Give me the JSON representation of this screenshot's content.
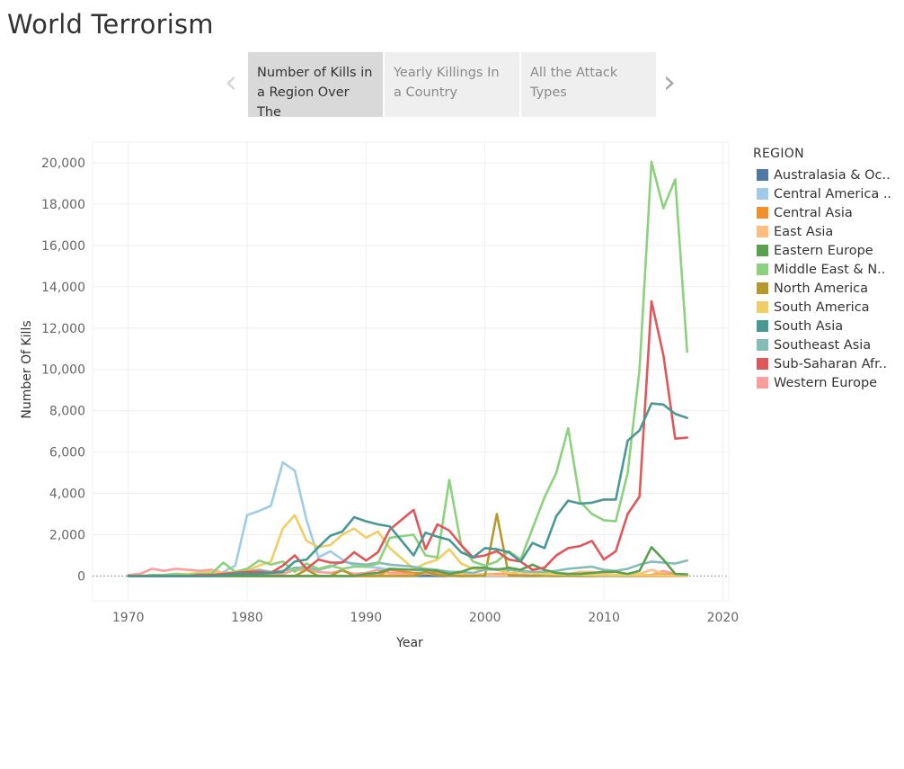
{
  "page": {
    "title": "World Terrorism"
  },
  "story": {
    "prev_icon": "chevron-left-icon",
    "next_icon": "chevron-right-icon",
    "prev_glyph": "‹",
    "next_glyph": "›",
    "points": [
      {
        "label": "Number of Kills in a Region Over The",
        "active": true
      },
      {
        "label": "Yearly Killings In a Country",
        "active": false
      },
      {
        "label": "All the Attack Types",
        "active": false
      }
    ]
  },
  "chart_data": {
    "type": "line",
    "title": "",
    "xlabel": "Year",
    "ylabel": "Number Of Kills",
    "xlim": [
      1967,
      2020.5
    ],
    "ylim": [
      -1200,
      21000
    ],
    "xticks": [
      1970,
      1980,
      1990,
      2000,
      2010,
      2020
    ],
    "yticks": [
      0,
      2000,
      4000,
      6000,
      8000,
      10000,
      12000,
      14000,
      16000,
      18000,
      20000
    ],
    "xtick_labels": [
      "1970",
      "1980",
      "1990",
      "2000",
      "2010",
      "2020"
    ],
    "ytick_labels": [
      "0",
      "2,000",
      "4,000",
      "6,000",
      "8,000",
      "10,000",
      "12,000",
      "14,000",
      "16,000",
      "18,000",
      "20,000"
    ],
    "grid": true,
    "legend": {
      "title": "REGION",
      "position": "right",
      "entries": [
        "Australasia & Oc..",
        "Central America ..",
        "Central Asia",
        "East Asia",
        "Eastern Europe",
        "Middle East & N..",
        "North America",
        "South America",
        "South Asia",
        "Southeast Asia",
        "Sub-Saharan Afr..",
        "Western Europe"
      ]
    },
    "years": [
      1970,
      1971,
      1972,
      1973,
      1974,
      1975,
      1976,
      1977,
      1978,
      1979,
      1980,
      1981,
      1982,
      1983,
      1984,
      1985,
      1986,
      1987,
      1988,
      1989,
      1990,
      1991,
      1992,
      1994,
      1995,
      1996,
      1997,
      1998,
      1999,
      2000,
      2001,
      2002,
      2003,
      2004,
      2005,
      2006,
      2007,
      2008,
      2009,
      2010,
      2011,
      2012,
      2013,
      2014,
      2015,
      2016,
      2017
    ],
    "series": [
      {
        "name": "Australasia & Oceania",
        "color": "#4e79a7",
        "values": [
          0,
          0,
          0,
          0,
          0,
          0,
          0,
          0,
          0,
          0,
          0,
          0,
          0,
          0,
          0,
          10,
          0,
          5,
          0,
          10,
          20,
          10,
          10,
          5,
          10,
          0,
          5,
          0,
          10,
          0,
          0,
          0,
          0,
          0,
          5,
          0,
          5,
          0,
          0,
          0,
          5,
          0,
          5,
          5,
          5,
          5,
          5
        ]
      },
      {
        "name": "Central America & Caribbean",
        "color": "#a0cbe8",
        "values": [
          0,
          0,
          0,
          0,
          10,
          0,
          0,
          0,
          200,
          500,
          2950,
          3150,
          3400,
          5500,
          5100,
          2700,
          900,
          1200,
          800,
          500,
          450,
          400,
          300,
          150,
          200,
          150,
          50,
          20,
          10,
          5,
          5,
          10,
          5,
          5,
          5,
          10,
          10,
          10,
          10,
          10,
          5,
          5,
          5,
          10,
          10,
          10,
          10
        ]
      },
      {
        "name": "Central Asia",
        "color": "#f28e2b",
        "values": [
          0,
          0,
          0,
          0,
          0,
          0,
          0,
          0,
          0,
          0,
          0,
          0,
          0,
          0,
          0,
          0,
          0,
          0,
          0,
          0,
          0,
          0,
          300,
          150,
          100,
          200,
          80,
          60,
          50,
          80,
          60,
          30,
          30,
          20,
          20,
          10,
          20,
          10,
          10,
          30,
          20,
          20,
          10,
          10,
          5,
          10,
          10
        ]
      },
      {
        "name": "East Asia",
        "color": "#ffbe7d",
        "values": [
          0,
          0,
          0,
          0,
          0,
          0,
          0,
          0,
          0,
          0,
          0,
          0,
          0,
          0,
          20,
          0,
          0,
          0,
          0,
          10,
          30,
          0,
          50,
          20,
          150,
          50,
          20,
          100,
          50,
          50,
          30,
          20,
          30,
          20,
          20,
          50,
          100,
          200,
          200,
          100,
          50,
          50,
          100,
          300,
          100,
          50,
          50
        ]
      },
      {
        "name": "Eastern Europe",
        "color": "#59a14f",
        "values": [
          0,
          0,
          0,
          0,
          0,
          0,
          0,
          0,
          0,
          0,
          0,
          0,
          0,
          0,
          0,
          0,
          0,
          0,
          0,
          0,
          100,
          150,
          350,
          300,
          300,
          250,
          100,
          200,
          400,
          400,
          300,
          400,
          300,
          550,
          300,
          150,
          100,
          100,
          150,
          200,
          200,
          100,
          250,
          1400,
          800,
          100,
          80
        ]
      },
      {
        "name": "Middle East & North Africa",
        "color": "#8cd17d",
        "values": [
          0,
          0,
          50,
          50,
          100,
          50,
          100,
          100,
          650,
          200,
          350,
          750,
          550,
          700,
          200,
          600,
          350,
          500,
          350,
          450,
          450,
          600,
          1850,
          2000,
          1000,
          900,
          4650,
          1500,
          700,
          500,
          700,
          1200,
          800,
          2300,
          3800,
          5000,
          7150,
          3600,
          3000,
          2700,
          2650,
          5000,
          10000,
          20050,
          17800,
          19200,
          10850
        ]
      },
      {
        "name": "North America",
        "color": "#b6992d",
        "values": [
          0,
          10,
          0,
          0,
          0,
          20,
          0,
          0,
          0,
          0,
          10,
          0,
          0,
          0,
          0,
          300,
          0,
          0,
          300,
          0,
          0,
          0,
          0,
          0,
          200,
          50,
          10,
          0,
          0,
          20,
          3000,
          30,
          20,
          10,
          20,
          30,
          20,
          10,
          20,
          30,
          20,
          10,
          50,
          50,
          60,
          70,
          50
        ]
      },
      {
        "name": "South America",
        "color": "#f1ce63",
        "values": [
          0,
          20,
          20,
          50,
          100,
          100,
          150,
          200,
          150,
          200,
          250,
          500,
          700,
          2300,
          2950,
          1700,
          1400,
          1500,
          2000,
          2300,
          1850,
          2150,
          1350,
          350,
          600,
          800,
          1300,
          600,
          350,
          300,
          300,
          150,
          200,
          150,
          100,
          80,
          80,
          60,
          50,
          50,
          40,
          30,
          50,
          40,
          30,
          30,
          20
        ]
      },
      {
        "name": "South Asia",
        "color": "#499894",
        "values": [
          0,
          0,
          0,
          0,
          0,
          0,
          0,
          0,
          50,
          100,
          100,
          100,
          150,
          200,
          700,
          800,
          1400,
          1950,
          2150,
          2850,
          2650,
          2500,
          2400,
          1000,
          2100,
          1900,
          1750,
          1150,
          900,
          1350,
          1300,
          1150,
          700,
          1600,
          1350,
          2900,
          3650,
          3500,
          3550,
          3700,
          3700,
          6550,
          7050,
          8350,
          8300,
          7850,
          7650
        ]
      },
      {
        "name": "Southeast Asia",
        "color": "#86bcb6",
        "values": [
          0,
          0,
          0,
          0,
          0,
          0,
          0,
          0,
          0,
          50,
          200,
          300,
          200,
          250,
          400,
          400,
          300,
          450,
          700,
          600,
          550,
          650,
          550,
          450,
          350,
          300,
          200,
          200,
          150,
          300,
          350,
          300,
          250,
          200,
          200,
          250,
          350,
          400,
          450,
          300,
          250,
          350,
          550,
          700,
          650,
          600,
          750
        ]
      },
      {
        "name": "Sub-Saharan Africa",
        "color": "#e15759",
        "values": [
          0,
          0,
          0,
          0,
          0,
          0,
          50,
          50,
          100,
          150,
          200,
          200,
          150,
          500,
          1000,
          350,
          800,
          650,
          650,
          1150,
          750,
          1150,
          2250,
          3200,
          1300,
          2500,
          2200,
          1500,
          900,
          1000,
          1200,
          800,
          700,
          300,
          400,
          1000,
          1350,
          1450,
          1700,
          800,
          1200,
          3000,
          3850,
          13300,
          10700,
          6650,
          6700
        ]
      },
      {
        "name": "Western Europe",
        "color": "#ff9d9a",
        "values": [
          50,
          100,
          350,
          250,
          350,
          300,
          250,
          300,
          150,
          100,
          150,
          150,
          100,
          100,
          300,
          300,
          200,
          150,
          250,
          100,
          150,
          300,
          150,
          100,
          200,
          100,
          100,
          150,
          50,
          50,
          100,
          100,
          50,
          200,
          50,
          50,
          50,
          50,
          50,
          50,
          50,
          80,
          50,
          50,
          250,
          100,
          50
        ]
      }
    ]
  }
}
